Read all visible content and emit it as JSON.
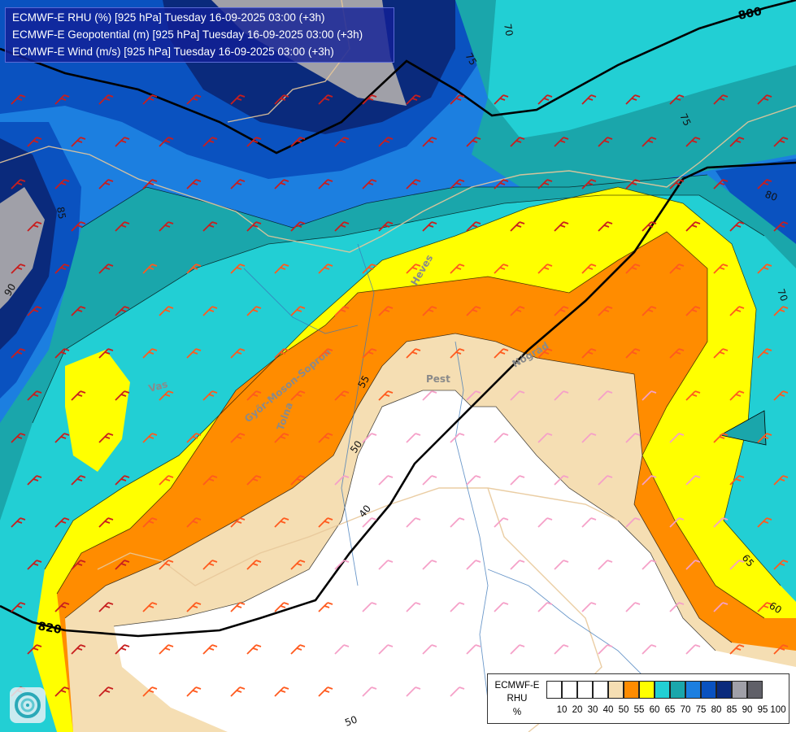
{
  "titles": {
    "rhu": "ECMWF-E RHU (%) [925 hPa] Tuesday 16-09-2025 03:00 (+3h)",
    "geopotential": "ECMWF-E Geopotential (m) [925 hPa] Tuesday 16-09-2025 03:00 (+3h)",
    "wind": "ECMWF-E Wind (m/s) [925 hPa] Tuesday 16-09-2025 03:00 (+3h)"
  },
  "legend": {
    "model": "ECMWF-E",
    "variable": "RHU",
    "unit": "%",
    "ticks": [
      "10",
      "20",
      "30",
      "40",
      "50",
      "55",
      "60",
      "65",
      "70",
      "75",
      "80",
      "85",
      "90",
      "95",
      "100"
    ],
    "colors": [
      "#ffffff",
      "#ffffff",
      "#ffffff",
      "#ffffff",
      "#f5deb3",
      "#ff8c00",
      "#ffff00",
      "#22cfd4",
      "#1aa6ab",
      "#1c7fe0",
      "#0a52c0",
      "#0a2a7c",
      "#a0a0a8",
      "#606068"
    ]
  },
  "geopotential_labels": [
    "800",
    "820"
  ],
  "rhu_contour_labels": [
    "40",
    "50",
    "50",
    "55",
    "60",
    "65",
    "70",
    "70",
    "75",
    "80",
    "85",
    "90"
  ],
  "place_names": [
    "Pest",
    "Heves",
    "Nógrád",
    "Vas",
    "Győr-Moson-Sopron",
    "Tolna"
  ],
  "colors": {
    "title_bg": "#122096",
    "contour_line": "#000000",
    "border_line": "#e8c89a",
    "wind_barb_strong": "#c81e1e",
    "wind_barb_moderate": "#ff5a1e",
    "wind_barb_weak": "#f5a0c8"
  },
  "icons": [
    "wind-barb-icon",
    "ecmwf-logo-icon"
  ]
}
